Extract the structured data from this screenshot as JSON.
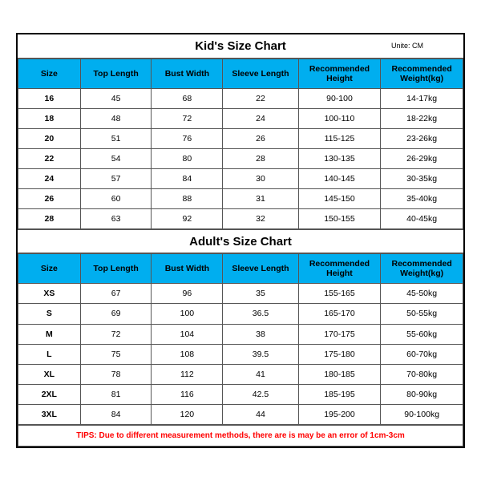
{
  "unit_label": "Unite: CM",
  "kids": {
    "title": "Kid's Size Chart",
    "columns": [
      "Size",
      "Top Length",
      "Bust Width",
      "Sleeve Length",
      "Recommended Height",
      "Recommended Weight(kg)"
    ],
    "rows": [
      [
        "16",
        "45",
        "68",
        "22",
        "90-100",
        "14-17kg"
      ],
      [
        "18",
        "48",
        "72",
        "24",
        "100-110",
        "18-22kg"
      ],
      [
        "20",
        "51",
        "76",
        "26",
        "115-125",
        "23-26kg"
      ],
      [
        "22",
        "54",
        "80",
        "28",
        "130-135",
        "26-29kg"
      ],
      [
        "24",
        "57",
        "84",
        "30",
        "140-145",
        "30-35kg"
      ],
      [
        "26",
        "60",
        "88",
        "31",
        "145-150",
        "35-40kg"
      ],
      [
        "28",
        "63",
        "92",
        "32",
        "150-155",
        "40-45kg"
      ]
    ]
  },
  "adults": {
    "title": "Adult's Size Chart",
    "columns": [
      "Size",
      "Top Length",
      "Bust Width",
      "Sleeve Length",
      "Recommended Height",
      "Recommended Weight(kg)"
    ],
    "rows": [
      [
        "XS",
        "67",
        "96",
        "35",
        "155-165",
        "45-50kg"
      ],
      [
        "S",
        "69",
        "100",
        "36.5",
        "165-170",
        "50-55kg"
      ],
      [
        "M",
        "72",
        "104",
        "38",
        "170-175",
        "55-60kg"
      ],
      [
        "L",
        "75",
        "108",
        "39.5",
        "175-180",
        "60-70kg"
      ],
      [
        "XL",
        "78",
        "112",
        "41",
        "180-185",
        "70-80kg"
      ],
      [
        "2XL",
        "81",
        "116",
        "42.5",
        "185-195",
        "80-90kg"
      ],
      [
        "3XL",
        "84",
        "120",
        "44",
        "195-200",
        "90-100kg"
      ]
    ]
  },
  "tips": "TIPS: Due to different measurement methods, there are is may be an error of 1cm-3cm",
  "style": {
    "header_bg": "#00aeef",
    "border_color": "#555555",
    "outer_border": "#000000",
    "tips_color": "#ff0000",
    "background": "#ffffff",
    "font_family": "Arial",
    "title_fontsize": 15,
    "cell_fontsize": 10.5,
    "unit_fontsize": 9
  }
}
